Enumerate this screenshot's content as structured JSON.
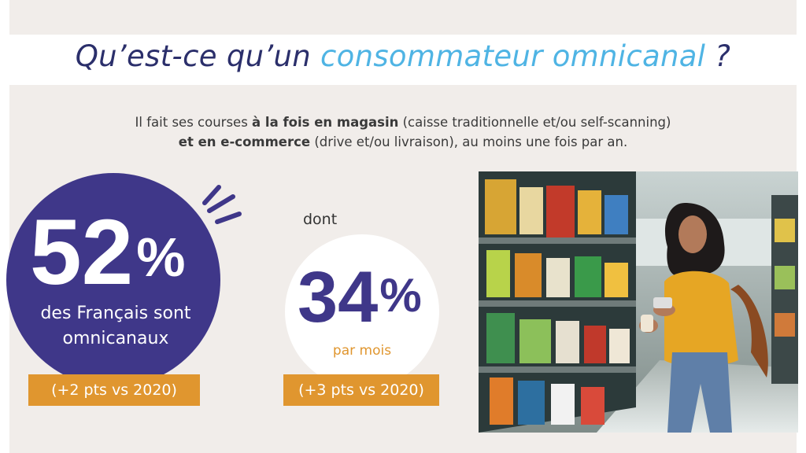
{
  "header": {
    "title_part1": "Qu’est-ce qu’un ",
    "title_accent": "consommateur omnicanal",
    "title_part2": " ?"
  },
  "definition": {
    "line1_prefix": "Il fait ses courses ",
    "line1_bold": "à la fois en magasin",
    "line1_suffix": " (caisse traditionnelle et/ou self-scanning)",
    "line2_bold": "et en e-commerce",
    "line2_suffix": " (drive et/ou livraison), au moins une fois par an."
  },
  "stat_main": {
    "value": "52",
    "unit": "%",
    "caption_line1": "des Français sont",
    "caption_line2": "omnicanaux",
    "badge": "(+2 pts vs 2020)"
  },
  "stat_sub": {
    "intro": "dont",
    "value": "34",
    "unit": "%",
    "caption": "par mois",
    "badge": "(+3 pts vs 2020)"
  },
  "colors": {
    "navy": "#2b2f6b",
    "accent_blue": "#4fb4e4",
    "purple": "#3f3789",
    "orange": "#e0962f",
    "background": "#f1edea"
  },
  "icons": {
    "emphasis": "emphasis-strokes-icon",
    "photo": "woman-shopping-photo"
  }
}
